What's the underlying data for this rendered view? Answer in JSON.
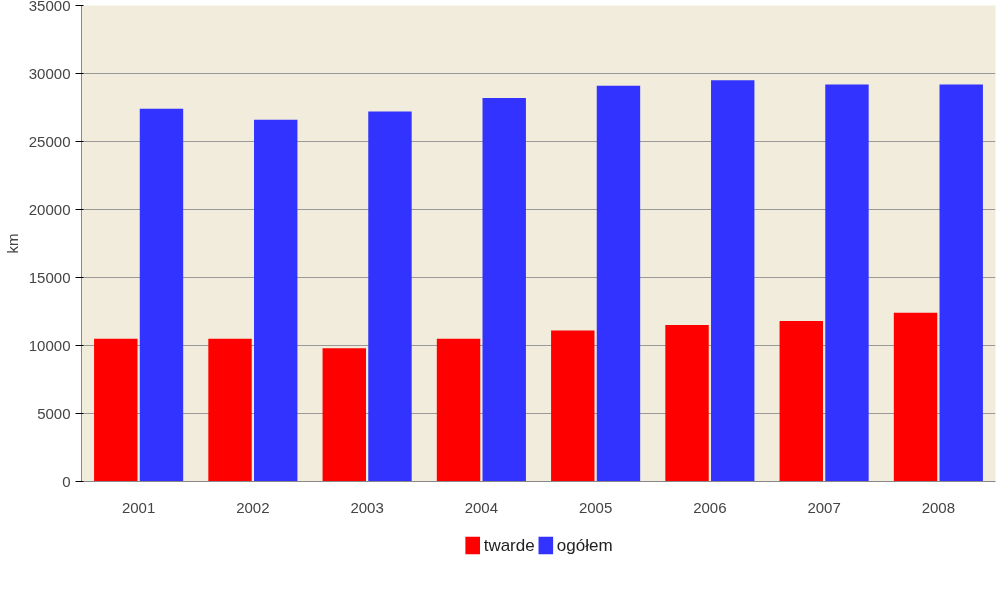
{
  "chart_data": {
    "type": "bar",
    "ylabel": "km",
    "categories": [
      "2001",
      "2002",
      "2003",
      "2004",
      "2005",
      "2006",
      "2007",
      "2008"
    ],
    "series": [
      {
        "name": "twarde",
        "color": "#ff0000",
        "values": [
          10500,
          10500,
          9800,
          10500,
          11100,
          11500,
          11800,
          12400
        ]
      },
      {
        "name": "ogółem",
        "color": "#3333ff",
        "values": [
          27400,
          26600,
          27200,
          28200,
          29100,
          29500,
          29200,
          29200
        ]
      }
    ],
    "ylim": [
      0,
      35000
    ],
    "yticks": [
      0,
      5000,
      10000,
      15000,
      20000,
      25000,
      30000,
      35000
    ],
    "grid": "y",
    "legend": "bottom"
  }
}
